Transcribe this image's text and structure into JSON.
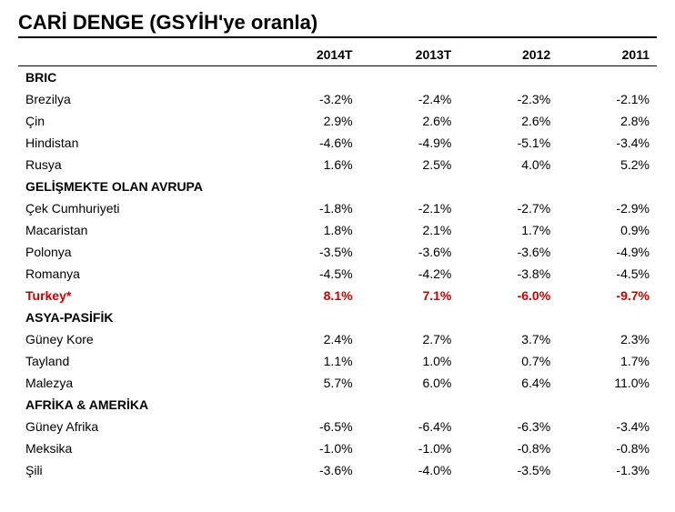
{
  "title": "CARİ DENGE (GSYİH'ye oranla)",
  "columns": [
    "",
    "2014T",
    "2013T",
    "2012",
    "2011"
  ],
  "highlight_color": "#d10000",
  "sections": [
    {
      "name": "BRIC",
      "rows": [
        {
          "name": "Brezilya",
          "values": [
            "-3.2%",
            "-2.4%",
            "-2.3%",
            "-2.1%"
          ]
        },
        {
          "name": "Çin",
          "values": [
            "2.9%",
            "2.6%",
            "2.6%",
            "2.8%"
          ]
        },
        {
          "name": "Hindistan",
          "values": [
            "-4.6%",
            "-4.9%",
            "-5.1%",
            "-3.4%"
          ]
        },
        {
          "name": "Rusya",
          "values": [
            "1.6%",
            "2.5%",
            "4.0%",
            "5.2%"
          ]
        }
      ]
    },
    {
      "name": "GELİŞMEKTE OLAN AVRUPA",
      "rows": [
        {
          "name": "Çek Cumhuriyeti",
          "values": [
            "-1.8%",
            "-2.1%",
            "-2.7%",
            "-2.9%"
          ]
        },
        {
          "name": "Macaristan",
          "values": [
            "1.8%",
            "2.1%",
            "1.7%",
            "0.9%"
          ]
        },
        {
          "name": "Polonya",
          "values": [
            "-3.5%",
            "-3.6%",
            "-3.6%",
            "-4.9%"
          ]
        },
        {
          "name": "Romanya",
          "values": [
            "-4.5%",
            "-4.2%",
            "-3.8%",
            "-4.5%"
          ]
        },
        {
          "name": "Turkey*",
          "values": [
            "8.1%",
            "7.1%",
            "-6.0%",
            "-9.7%"
          ],
          "highlight": true
        }
      ]
    },
    {
      "name": "ASYA-PASİFİK",
      "rows": [
        {
          "name": "Güney Kore",
          "values": [
            "2.4%",
            "2.7%",
            "3.7%",
            "2.3%"
          ]
        },
        {
          "name": "Tayland",
          "values": [
            "1.1%",
            "1.0%",
            "0.7%",
            "1.7%"
          ]
        },
        {
          "name": "Malezya",
          "values": [
            "5.7%",
            "6.0%",
            "6.4%",
            "11.0%"
          ]
        }
      ]
    },
    {
      "name": "AFRİKA & AMERİKA",
      "rows": [
        {
          "name": "Güney Afrika",
          "values": [
            "-6.5%",
            "-6.4%",
            "-6.3%",
            "-3.4%"
          ]
        },
        {
          "name": "Meksika",
          "values": [
            "-1.0%",
            "-1.0%",
            "-0.8%",
            "-0.8%"
          ]
        },
        {
          "name": "Şili",
          "values": [
            "-3.6%",
            "-4.0%",
            "-3.5%",
            "-1.3%"
          ]
        }
      ]
    }
  ]
}
